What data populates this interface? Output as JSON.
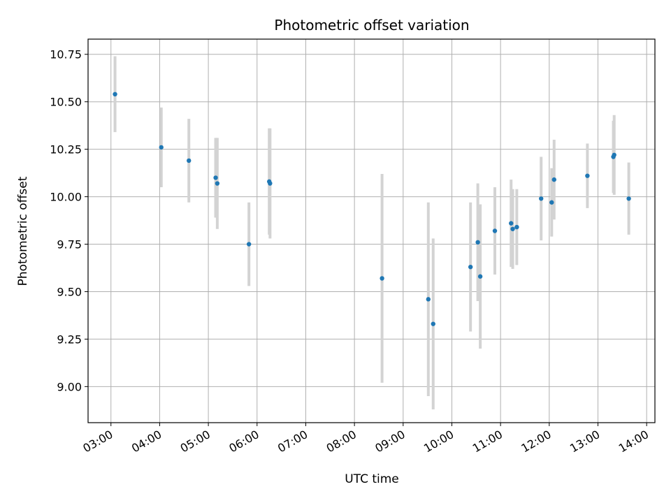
{
  "chart_data": {
    "type": "scatter",
    "title": "Photometric offset variation",
    "xlabel": "UTC time",
    "ylabel": "Photometric offset",
    "x_tick_labels": [
      "03:00",
      "04:00",
      "05:00",
      "06:00",
      "07:00",
      "08:00",
      "09:00",
      "10:00",
      "11:00",
      "12:00",
      "13:00",
      "14:00"
    ],
    "y_tick_labels": [
      "9.00",
      "9.25",
      "9.50",
      "9.75",
      "10.00",
      "10.25",
      "10.50",
      "10.75"
    ],
    "x_ticks_hours": [
      3,
      4,
      5,
      6,
      7,
      8,
      9,
      10,
      11,
      12,
      13,
      14
    ],
    "y_ticks": [
      9.0,
      9.25,
      9.5,
      9.75,
      10.0,
      10.25,
      10.5,
      10.75
    ],
    "xlim_hours": [
      2.53,
      14.17
    ],
    "ylim": [
      8.81,
      10.83
    ],
    "grid": true,
    "marker_color": "#1f77b4",
    "errorbar_color": "#d3d3d3",
    "points": [
      {
        "t": "03:05",
        "y": 10.54,
        "err": 0.2
      },
      {
        "t": "04:02",
        "y": 10.26,
        "err": 0.21
      },
      {
        "t": "04:36",
        "y": 10.19,
        "err": 0.22
      },
      {
        "t": "05:09",
        "y": 10.1,
        "err": 0.21
      },
      {
        "t": "05:11",
        "y": 10.07,
        "err": 0.24
      },
      {
        "t": "05:50",
        "y": 9.75,
        "err": 0.22
      },
      {
        "t": "06:15",
        "y": 10.08,
        "err": 0.28
      },
      {
        "t": "06:16",
        "y": 10.07,
        "err": 0.29
      },
      {
        "t": "08:34",
        "y": 9.57,
        "err": 0.55
      },
      {
        "t": "09:31",
        "y": 9.46,
        "err": 0.51
      },
      {
        "t": "09:37",
        "y": 9.33,
        "err": 0.45
      },
      {
        "t": "10:23",
        "y": 9.63,
        "err": 0.34
      },
      {
        "t": "10:32",
        "y": 9.76,
        "err": 0.31
      },
      {
        "t": "10:35",
        "y": 9.58,
        "err": 0.38
      },
      {
        "t": "10:53",
        "y": 9.82,
        "err": 0.23
      },
      {
        "t": "11:13",
        "y": 9.86,
        "err": 0.23
      },
      {
        "t": "11:15",
        "y": 9.83,
        "err": 0.21
      },
      {
        "t": "11:20",
        "y": 9.84,
        "err": 0.2
      },
      {
        "t": "11:50",
        "y": 9.99,
        "err": 0.22
      },
      {
        "t": "12:03",
        "y": 9.97,
        "err": 0.18
      },
      {
        "t": "12:06",
        "y": 10.09,
        "err": 0.21
      },
      {
        "t": "12:47",
        "y": 10.11,
        "err": 0.17
      },
      {
        "t": "13:19",
        "y": 10.21,
        "err": 0.19
      },
      {
        "t": "13:20",
        "y": 10.22,
        "err": 0.21
      },
      {
        "t": "13:38",
        "y": 9.99,
        "err": 0.19
      }
    ]
  }
}
